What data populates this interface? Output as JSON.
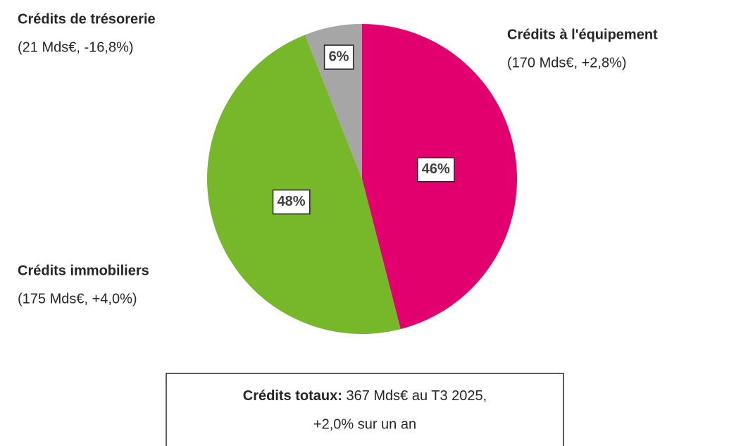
{
  "chart_data": {
    "type": "pie",
    "categories": [
      "Crédits à l'équipement",
      "Crédits immobiliers",
      "Crédits de trésorerie"
    ],
    "details": [
      "(170 Mds€, +2,8%)",
      "(175 Mds€, +4,0%)",
      "(21 Mds€, -16,8%)"
    ],
    "values": [
      46,
      48,
      6
    ],
    "value_labels": [
      "46%",
      "48%",
      "6%"
    ],
    "colors": [
      "#e2006e",
      "#77b82a",
      "#a6a6a6"
    ],
    "note": {
      "label": "Crédits totaux:",
      "line1": "367 Mds€ au T3 2025,",
      "line2": "+2,0% sur un an"
    }
  }
}
